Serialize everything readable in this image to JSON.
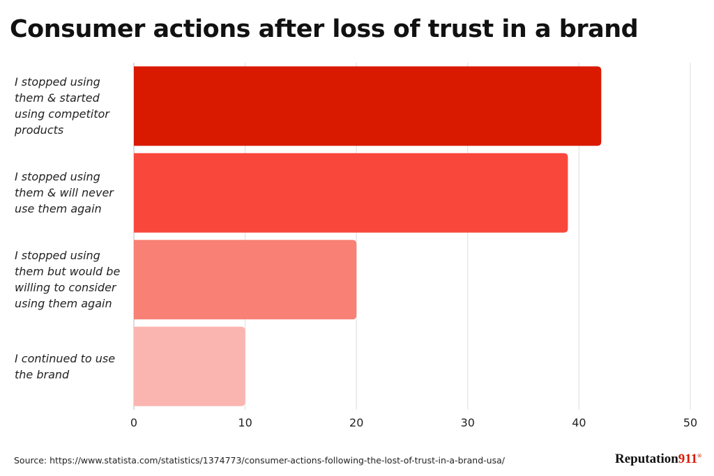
{
  "chart_data": {
    "type": "bar",
    "orientation": "horizontal",
    "title": "Consumer actions after loss of trust in a brand",
    "categories": [
      "I stopped using\nthem & started\nusing competitor\nproducts",
      "I stopped using\nthem  & will never\nuse them again",
      "I stopped using\nthem but would be\nwilling to consider\nusing them again",
      "I continued to use\nthe brand"
    ],
    "values": [
      42,
      39,
      20,
      10
    ],
    "colors": [
      "#d91a00",
      "#f9483b",
      "#f88075",
      "#fbb5b0"
    ],
    "xlim": [
      0,
      50
    ],
    "xticks": [
      "0",
      "10",
      "20",
      "30",
      "40",
      "50"
    ],
    "xlabel": "",
    "ylabel": "",
    "grid": true
  },
  "footer": {
    "source": "Source: https://www.statista.com/statistics/1374773/consumer-actions-following-the-lost-of-trust-in-a-brand-usa/",
    "logo_text": "Reputation",
    "logo_num": "911",
    "logo_mark": "®"
  }
}
